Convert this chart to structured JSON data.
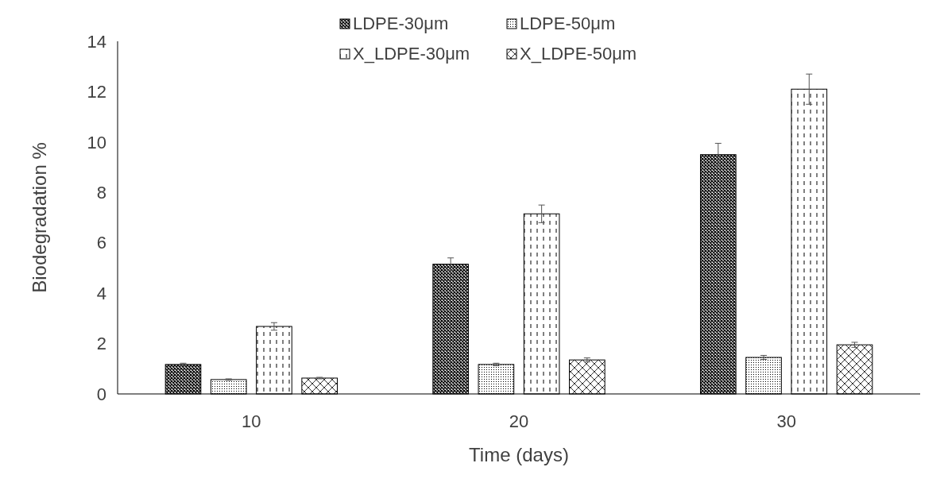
{
  "chart_data": {
    "type": "bar",
    "xlabel": "Time (days)",
    "ylabel": "Biodegradation %",
    "categories": [
      "10",
      "20",
      "30"
    ],
    "ylim": [
      0,
      14
    ],
    "yticks": [
      0,
      2,
      4,
      6,
      8,
      10,
      12,
      14
    ],
    "grid": false,
    "legend": "top",
    "series": [
      {
        "name": "LDPE-30μm",
        "color": "#000000",
        "values": [
          1.17,
          5.15,
          9.5
        ],
        "errors": [
          0.05,
          0.25,
          0.45
        ]
      },
      {
        "name": "LDPE-50μm",
        "color": "#000000",
        "values": [
          0.57,
          1.17,
          1.45
        ],
        "errors": [
          0.03,
          0.05,
          0.08
        ]
      },
      {
        "name": "X_LDPE-30μm",
        "color": "#000000",
        "values": [
          2.68,
          7.15,
          12.1
        ],
        "errors": [
          0.15,
          0.35,
          0.6
        ]
      },
      {
        "name": "X_LDPE-50μm",
        "color": "#000000",
        "values": [
          0.63,
          1.35,
          1.95
        ],
        "errors": [
          0.03,
          0.08,
          0.1
        ]
      }
    ]
  }
}
